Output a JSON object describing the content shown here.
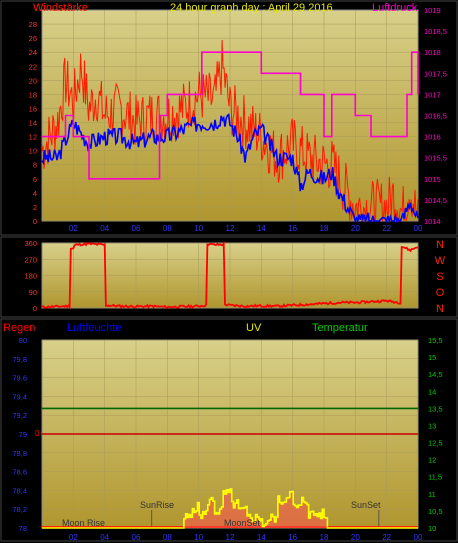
{
  "top_chart": {
    "title": "24 hour graph day : April 29 2016",
    "left_label": "Windstärke",
    "right_label": "Luftdruck",
    "left_ticks": [
      "0",
      "2",
      "4",
      "6",
      "8",
      "10",
      "12",
      "14",
      "16",
      "18",
      "20",
      "22",
      "24",
      "26",
      "28"
    ],
    "right_ticks": [
      "1014",
      "1014,5",
      "1015",
      "1015,5",
      "1016",
      "1016,5",
      "1017",
      "1017,5",
      "1018",
      "1018,5",
      "1019"
    ],
    "x_ticks": [
      "02",
      "04",
      "06",
      "08",
      "10",
      "12",
      "14",
      "16",
      "18",
      "20",
      "22",
      "00"
    ]
  },
  "dir_chart": {
    "left_ticks": [
      "0",
      "90",
      "180",
      "270",
      "360"
    ],
    "right_labels": [
      "N",
      "W",
      "S",
      "O",
      "N"
    ]
  },
  "bottom_chart": {
    "header_labels": {
      "regen": "Regen",
      "luftfeuchte": "Luftfeuchte",
      "uv": "UV",
      "temperatur": "Temperatur"
    },
    "left_ticks": [
      "78",
      "78,2",
      "78,4",
      "78,6",
      "78,8",
      "79",
      "79,2",
      "79,4",
      "79,6",
      "79,8",
      "80"
    ],
    "right_ticks": [
      "10",
      "10,5",
      "11",
      "11,5",
      "12",
      "12,5",
      "13",
      "13,5",
      "14",
      "14,5",
      "15",
      "15,5"
    ],
    "zero_label": "0",
    "x_ticks": [
      "02",
      "04",
      "06",
      "08",
      "10",
      "12",
      "14",
      "16",
      "18",
      "20",
      "22",
      "00"
    ],
    "annotations": {
      "moon_rise": "Moon Rise",
      "sun_rise": "SunRise",
      "moon_set": "MoonSet",
      "sun_set": "SunSet"
    }
  },
  "colors": {
    "plot_bg_top": "#d8d08a",
    "plot_bg_bottom": "#b0962e",
    "wind": "#ff1a00",
    "wind_avg": "#0000ff",
    "pressure": "#ff00cc",
    "direction": "#ff0000",
    "temperature": "#006600",
    "uv": "#ffff00",
    "rain": "#cc0000"
  },
  "chart_data": [
    {
      "type": "line",
      "title": "24 hour graph day : April 29 2016",
      "x_unit": "hour",
      "xlim": [
        0,
        24
      ],
      "ylabel": "Windstärke",
      "ylim": [
        0,
        30
      ],
      "y2label": "Luftdruck",
      "y2lim": [
        1014,
        1019
      ],
      "series": [
        {
          "name": "Windstärke",
          "axis": "left",
          "x": [
            0,
            1,
            1.5,
            2,
            2.5,
            3,
            3.5,
            4,
            5,
            6,
            7,
            8,
            9,
            10,
            11,
            11.5,
            12,
            13,
            14,
            15,
            16,
            17,
            18,
            18.5,
            19,
            19.5,
            20,
            21,
            22,
            22.5,
            23,
            23.5,
            24
          ],
          "y": [
            10,
            14,
            20,
            17,
            22,
            16,
            18,
            15,
            16,
            14,
            15,
            15,
            16,
            18,
            17,
            22,
            16,
            14,
            12,
            9,
            11,
            9,
            8,
            8,
            6,
            4,
            2,
            2,
            2,
            4,
            1,
            5,
            0
          ]
        },
        {
          "x": [
            0,
            1,
            2,
            3,
            4,
            5,
            6,
            7,
            8,
            9,
            10,
            11,
            11.5,
            12,
            12.5,
            13,
            13.5,
            14,
            15,
            16,
            16.5,
            17,
            18,
            18.5,
            19,
            19.5,
            20,
            21,
            22,
            23,
            23.5,
            24
          ],
          "y": [
            9,
            9,
            14,
            11,
            12,
            12,
            11,
            12,
            12,
            13,
            14,
            14,
            15,
            14,
            12,
            9,
            12,
            13,
            9,
            9,
            5,
            7,
            6,
            7,
            4,
            2,
            0,
            0,
            0,
            0,
            3,
            0
          ],
          "axis": "left"
        },
        {
          "axis": "right",
          "x": [
            0,
            1,
            1.5,
            2,
            3,
            4,
            5,
            6,
            7,
            7.5,
            8,
            9,
            10,
            10.2,
            11,
            12,
            13,
            14,
            15,
            16,
            16.5,
            17,
            17.5,
            18,
            18.5,
            19,
            19.5,
            20,
            21,
            22,
            23,
            23.3,
            23.6,
            24
          ],
          "y": [
            1016,
            1016,
            1016.5,
            1016,
            1015,
            1015,
            1015,
            1015,
            1015,
            1016.5,
            1017,
            1017,
            1017,
            1018,
            1018,
            1018,
            1018,
            1017.5,
            1017.5,
            1017.5,
            1017,
            1017,
            1017,
            1016,
            1017,
            1017,
            1017,
            1016.5,
            1016,
            1016,
            1016,
            1017,
            1018,
            1017
          ]
        }
      ]
    },
    {
      "type": "line",
      "x_unit": "hour",
      "xlim": [
        0,
        24
      ],
      "ylim": [
        0,
        360
      ],
      "series": [
        {
          "x": [
            0,
            1,
            1.6,
            2,
            2.1,
            3,
            4,
            4.1,
            5,
            6,
            7,
            8,
            9,
            10,
            10.5,
            10.6,
            11,
            11.6,
            11.7,
            12,
            13,
            14,
            15,
            16,
            17,
            18,
            19,
            20,
            21,
            22,
            22.8,
            23,
            23.5,
            24
          ],
          "y": [
            5,
            8,
            10,
            330,
            350,
            355,
            350,
            15,
            10,
            8,
            10,
            5,
            8,
            10,
            15,
            355,
            350,
            352,
            20,
            15,
            10,
            12,
            10,
            15,
            20,
            25,
            30,
            30,
            35,
            40,
            30,
            340,
            320,
            340
          ]
        }
      ]
    },
    {
      "type": "line",
      "x_unit": "hour",
      "xlim": [
        0,
        24
      ],
      "ylim": [
        78,
        80
      ],
      "y2lim": [
        10,
        15.5
      ],
      "series": [
        {
          "axis": "right",
          "x": [
            0,
            24
          ],
          "y": [
            13.5,
            13.5
          ]
        },
        {
          "axis": "left",
          "x": [
            0,
            24
          ],
          "y": [
            79,
            79
          ]
        },
        {
          "axis": "right",
          "x": [
            0,
            8.5,
            9,
            9.5,
            10,
            10.5,
            11,
            11.5,
            12,
            12.5,
            13,
            14,
            14.5,
            15,
            15.5,
            16,
            16.5,
            17,
            18,
            18.2,
            24
          ],
          "y": [
            10,
            10,
            10.3,
            10.6,
            10.4,
            10.8,
            10.5,
            11,
            10.7,
            10.5,
            10.3,
            10.1,
            10.3,
            10.8,
            11,
            10.6,
            10.8,
            10.4,
            10.2,
            10,
            10
          ]
        }
      ]
    }
  ]
}
